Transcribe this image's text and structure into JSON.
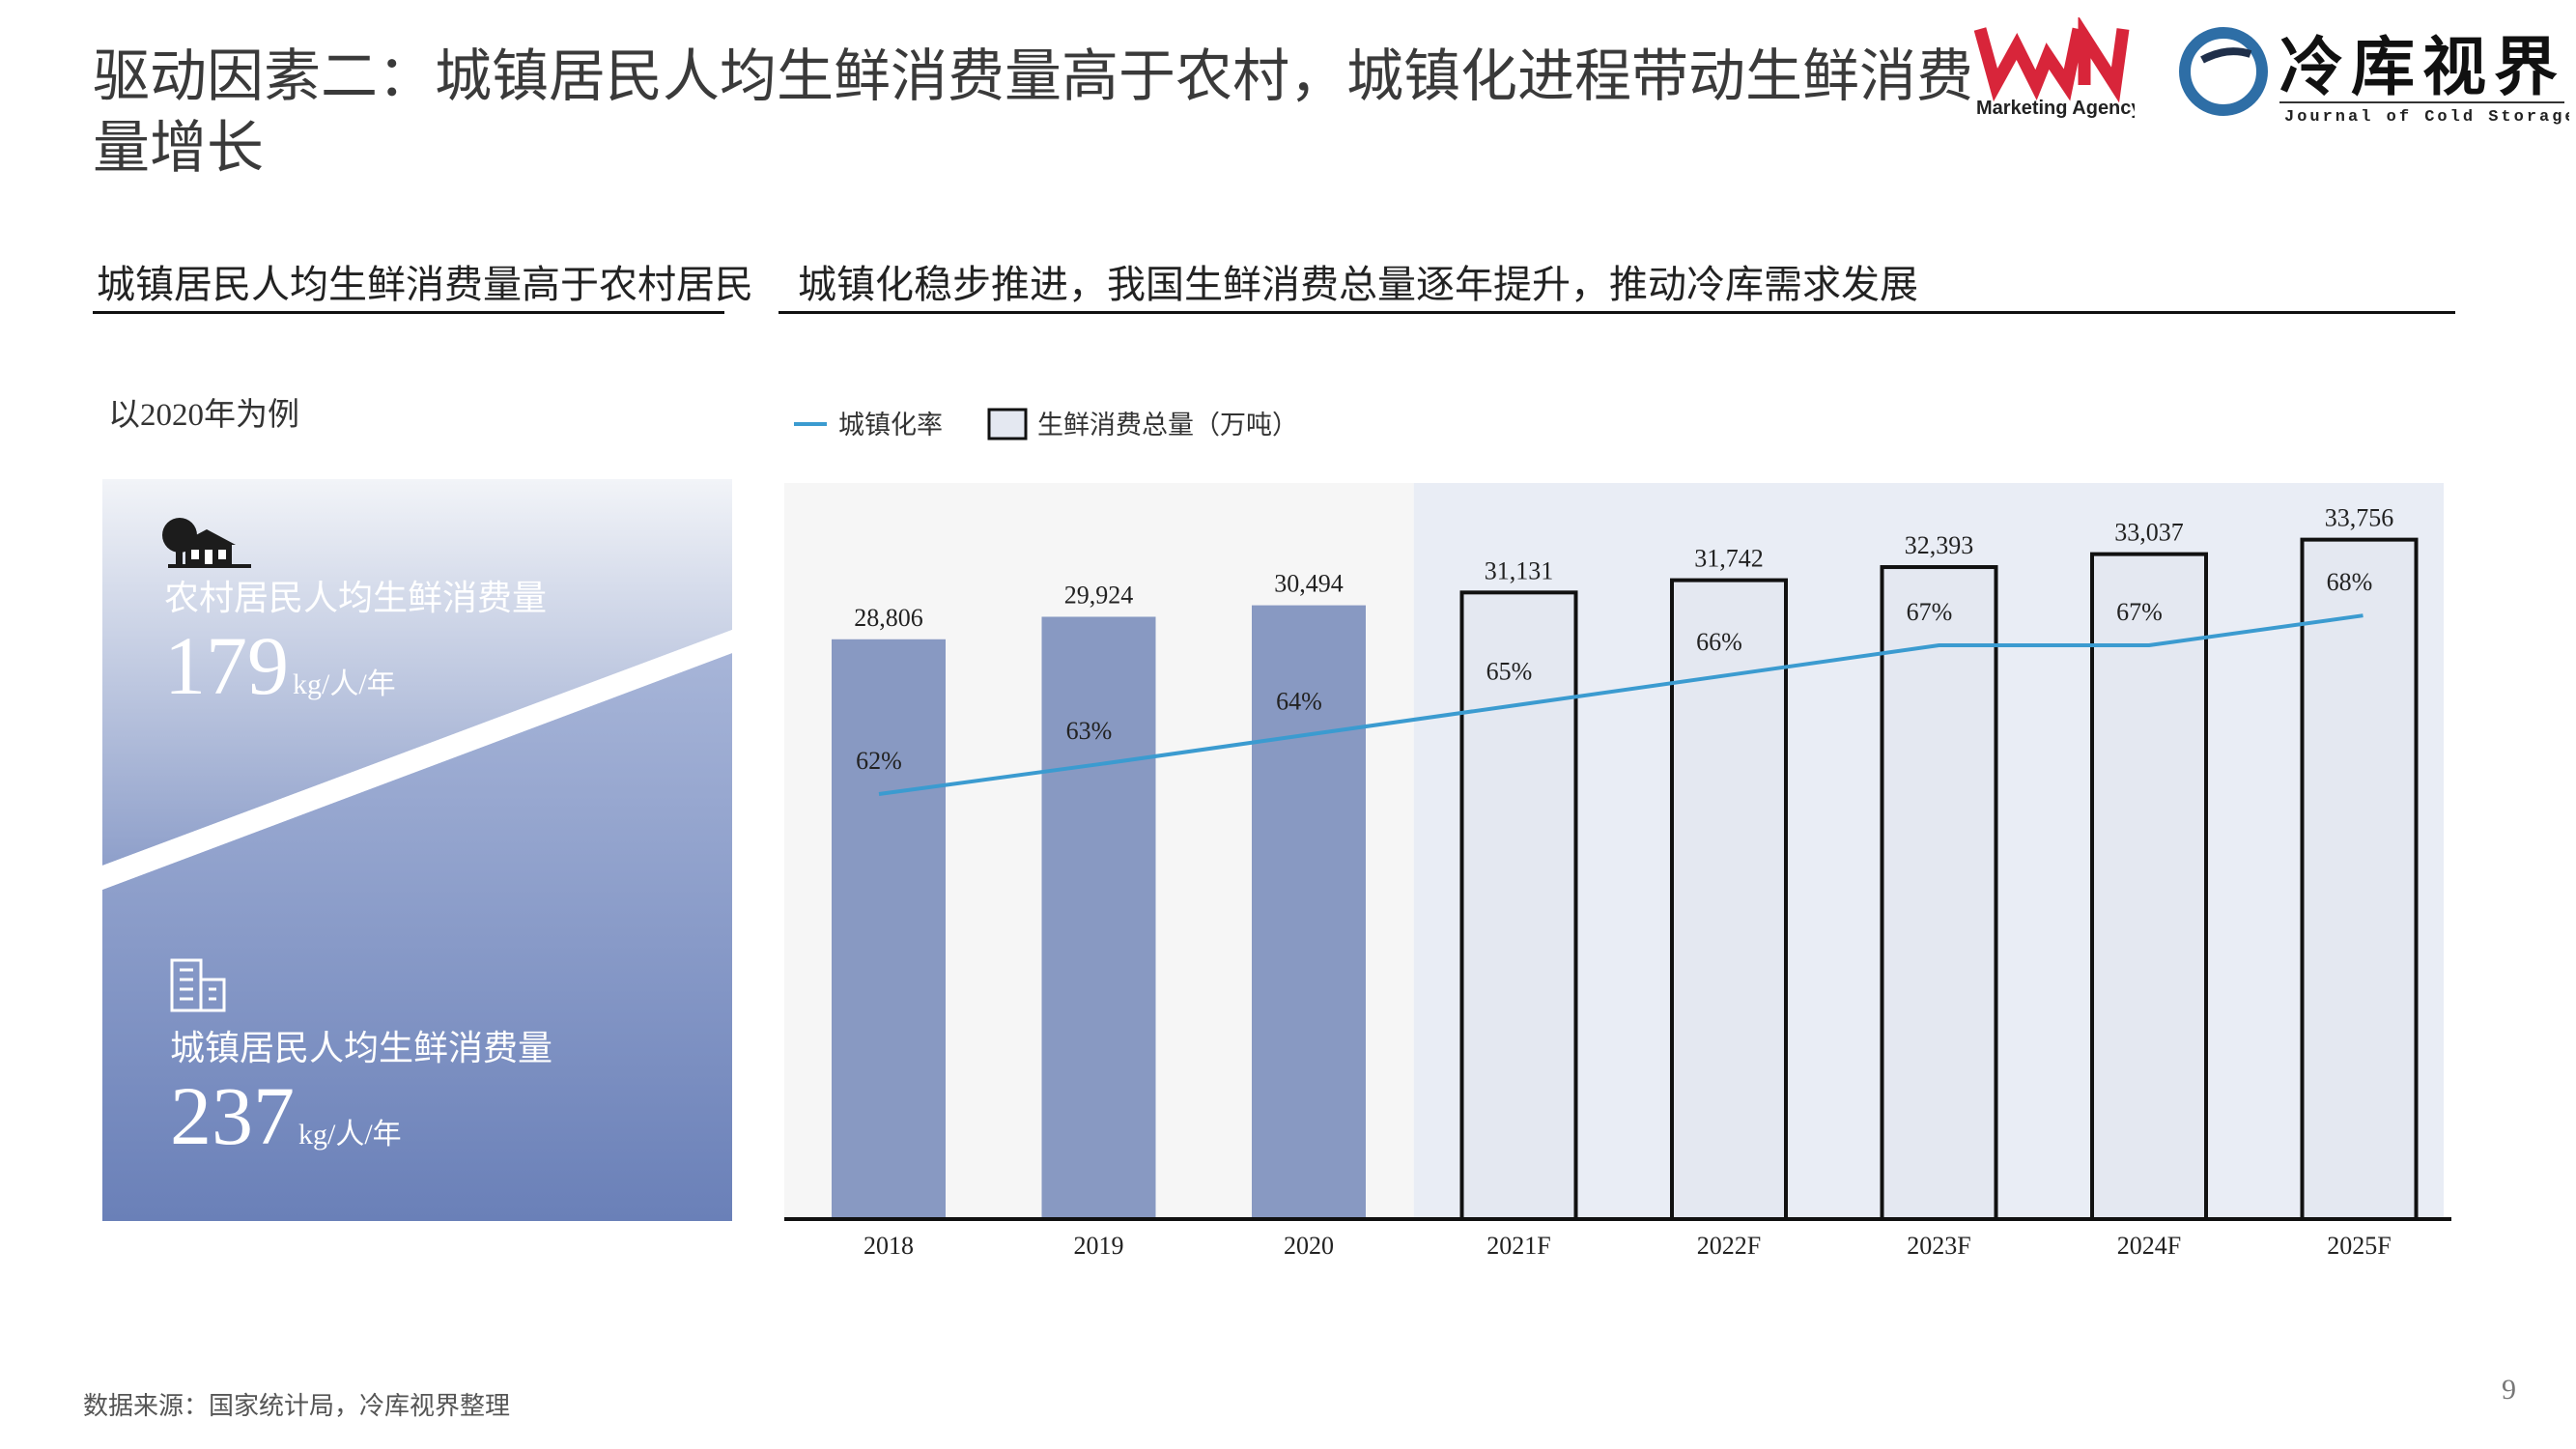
{
  "header": {
    "title": "驱动因素二：城镇居民人均生鲜消费量高于农村，城镇化进程带动生鲜消费量增长",
    "logo_wn_text": "Marketing Agency",
    "logo_cs_cn": "冷库视界",
    "logo_cs_en": "Journal of Cold Storage"
  },
  "left_section": {
    "title": "城镇居民人均生鲜消费量高于农村居民",
    "caption": "以2020年为例",
    "rural": {
      "label": "农村居民人均生鲜消费量",
      "value": "179",
      "unit": "kg/人/年",
      "icon": "farmhouse-icon"
    },
    "urban": {
      "label": "城镇居民人均生鲜消费量",
      "value": "237",
      "unit": "kg/人/年",
      "icon": "building-icon"
    }
  },
  "right_section": {
    "title": "城镇化稳步推进，我国生鲜消费总量逐年提升，推动冷库需求发展"
  },
  "chart_data": {
    "type": "bar",
    "categories": [
      "2018",
      "2019",
      "2020",
      "2021F",
      "2022F",
      "2023F",
      "2024F",
      "2025F"
    ],
    "series": [
      {
        "name": "生鲜消费总量（万吨）",
        "type": "bar",
        "values": [
          28806,
          29924,
          30494,
          31131,
          31742,
          32393,
          33037,
          33756
        ],
        "labels": [
          "28,806",
          "29,924",
          "30,494",
          "31,131",
          "31,742",
          "32,393",
          "33,037",
          "33,756"
        ]
      },
      {
        "name": "城镇化率",
        "type": "line",
        "values": [
          62,
          63,
          64,
          65,
          66,
          67,
          67,
          68
        ],
        "labels": [
          "62%",
          "63%",
          "64%",
          "65%",
          "66%",
          "67%",
          "67%",
          "68%"
        ]
      }
    ],
    "forecast_start_index": 3,
    "legend_position": "top-left",
    "grid": false,
    "colors": {
      "actual_bar": "#8899c2",
      "forecast_bar_fill": "#e4e8f1",
      "forecast_bar_stroke": "#111111",
      "line": "#3b9bd0",
      "actual_bg": "#f6f6f6",
      "forecast_bg": "#e9edf5"
    }
  },
  "footer": {
    "source": "数据来源：国家统计局，冷库视界整理",
    "page_number": "9"
  }
}
